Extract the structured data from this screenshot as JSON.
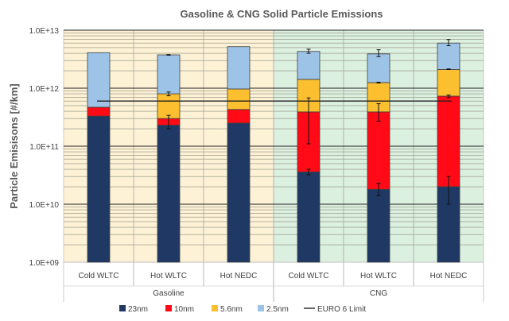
{
  "chart_data": {
    "type": "bar",
    "stacked": true,
    "title": "Gasoline & CNG Solid Particle Emissions",
    "ylabel": "Particle Emisisons [#/km]",
    "xlabel": "",
    "yscale": "log",
    "ylim": [
      1000000000.0,
      10000000000000.0
    ],
    "yticks": [
      {
        "value": 10000000000000.0,
        "label": "1.0E+13"
      },
      {
        "value": 1000000000000.0,
        "label": "1.0E+12"
      },
      {
        "value": 100000000000.0,
        "label": "1.0E+11"
      },
      {
        "value": 10000000000.0,
        "label": "1.0E+10"
      },
      {
        "value": 1000000000.0,
        "label": "1.0E+09"
      }
    ],
    "categories": [
      "Cold WLTC",
      "Hot WLTC",
      "Hot NEDC",
      "Cold WLTC",
      "Hot WLTC",
      "Hot NEDC"
    ],
    "groups": [
      {
        "label": "Gasoline",
        "categories": [
          0,
          1,
          2
        ],
        "background": "#fdf2d6"
      },
      {
        "label": "CNG",
        "categories": [
          3,
          4,
          5
        ],
        "background": "#dcf0e0"
      }
    ],
    "series": [
      {
        "name": "23nm",
        "color": "#1f3864",
        "values": [
          330000000000.0,
          230000000000.0,
          250000000000.0,
          36000000000.0,
          18000000000.0,
          20000000000.0
        ]
      },
      {
        "name": "10nm",
        "color": "#ff0a16",
        "values": [
          140000000000.0,
          70000000000.0,
          180000000000.0,
          354000000000.0,
          372000000000.0,
          710000000000.0
        ]
      },
      {
        "name": "5.6nm",
        "color": "#fbbf2f",
        "values": [
          0,
          500000000000.0,
          540000000000.0,
          1030000000000.0,
          860000000000.0,
          1370000000000.0
        ]
      },
      {
        "name": "2.5nm",
        "color": "#9dc3e6",
        "values": [
          3630000000000.0,
          2960000000000.0,
          4230000000000.0,
          2880000000000.0,
          2650000000000.0,
          3900000000000.0
        ]
      }
    ],
    "error_bars": [
      {
        "category": 1,
        "low": 740000000000.0,
        "high": 860000000000.0
      },
      {
        "category": 1,
        "low": 200000000000.0,
        "high": 340000000000.0
      },
      {
        "category": 1,
        "low": 3700000000000.0,
        "high": 3800000000000.0
      },
      {
        "category": 3,
        "low": 4000000000000.0,
        "high": 4700000000000.0
      },
      {
        "category": 3,
        "low": 110000000000.0,
        "high": 680000000000.0
      },
      {
        "category": 3,
        "low": 32000000000.0,
        "high": 40000000000.0
      },
      {
        "category": 4,
        "low": 3500000000000.0,
        "high": 4600000000000.0
      },
      {
        "category": 4,
        "low": 1230000000000.0,
        "high": 1270000000000.0
      },
      {
        "category": 4,
        "low": 270000000000.0,
        "high": 540000000000.0
      },
      {
        "category": 4,
        "low": 14000000000.0,
        "high": 23000000000.0
      },
      {
        "category": 5,
        "low": 5400000000000.0,
        "high": 6900000000000.0
      },
      {
        "category": 5,
        "low": 2100000000000.0,
        "high": 2150000000000.0
      },
      {
        "category": 5,
        "low": 690000000000.0,
        "high": 760000000000.0
      },
      {
        "category": 5,
        "low": 10000000000.0,
        "high": 30000000000.0
      }
    ],
    "reference_line": {
      "name": "EURO 6 Limit",
      "value": 600000000000.0,
      "color": "#222222"
    },
    "grid": true,
    "legend": "bottom"
  }
}
